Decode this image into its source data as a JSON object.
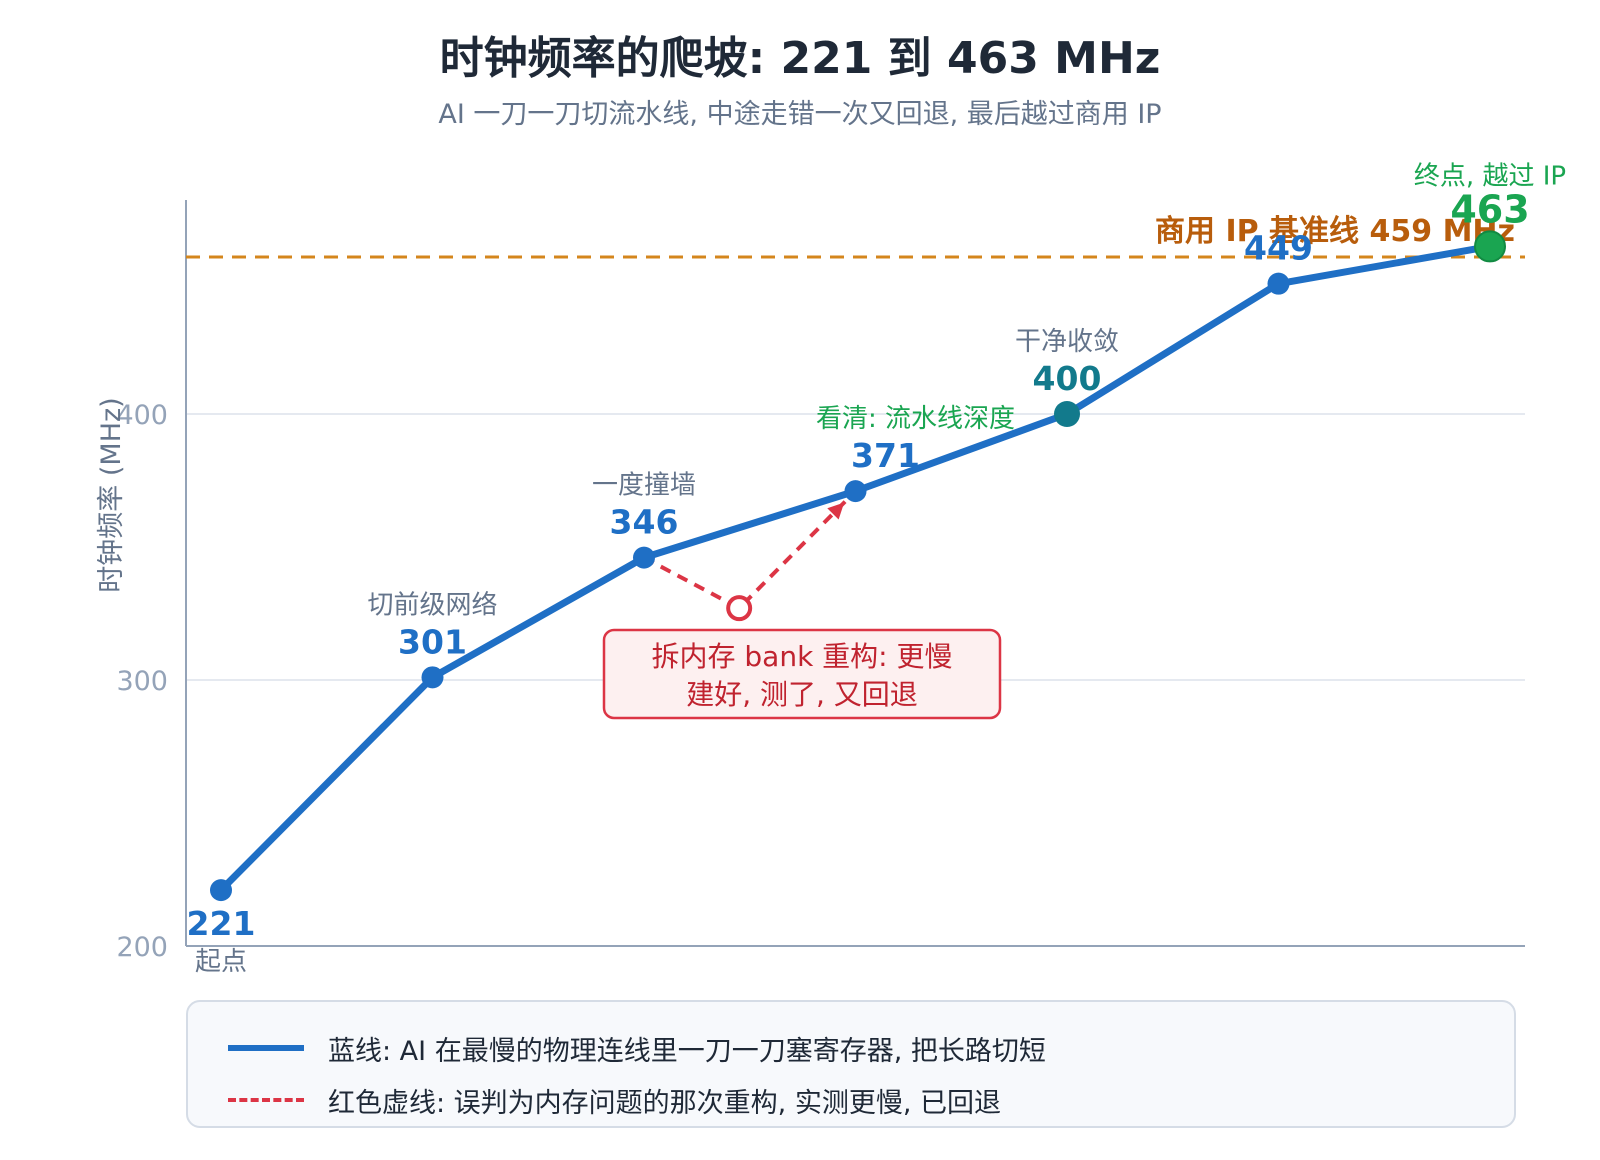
{
  "title": "时钟频率的爬坡: 221 到 463 MHz",
  "subtitle": "AI 一刀一刀切流水线, 中途走错一次又回退, 最后越过商用 IP",
  "chart_data": {
    "type": "line",
    "ylabel": "时钟频率 (MHz)",
    "ylim": [
      200,
      470
    ],
    "yticks": [
      200,
      300,
      400
    ],
    "grid": true,
    "series": [
      {
        "name": "蓝线: AI 在最慢的物理连线里一刀一刀塞寄存器, 把长路切短",
        "color": "#1f6fc5",
        "points": [
          {
            "step": 1,
            "value": 221,
            "label": "221",
            "note": "起点"
          },
          {
            "step": 2,
            "value": 301,
            "label": "301",
            "note": "切前级网络"
          },
          {
            "step": 3,
            "value": 346,
            "label": "346",
            "note": "一度撞墙"
          },
          {
            "step": 4,
            "value": 371,
            "label": "371",
            "note": "看清: 流水线深度"
          },
          {
            "step": 5,
            "value": 400,
            "label": "400",
            "note": "干净收敛"
          },
          {
            "step": 6,
            "value": 449,
            "label": "449",
            "note": ""
          },
          {
            "step": 7,
            "value": 463,
            "label": "463",
            "note": "终点, 越过 IP"
          }
        ]
      },
      {
        "name": "红色虚线: 误判为内存问题的那次重构, 实测更慢, 已回退",
        "color": "#dc3545",
        "style": "dashed",
        "points": [
          {
            "step": 3,
            "value": 346
          },
          {
            "step": 3.45,
            "value": 327
          },
          {
            "step": 4,
            "value": 371
          }
        ]
      }
    ],
    "reference_line": {
      "value": 459,
      "label": "商用 IP 基准线 459 MHz",
      "color": "#d4861c"
    },
    "callout": {
      "lines": [
        "拆内存 bank 重构: 更慢",
        "建好, 测了, 又回退"
      ]
    },
    "colors": {
      "axis": "#94a3b8",
      "grid": "#e5e9f0",
      "muted": "#64748b",
      "green": "#1aa551",
      "teal": "#127a8c",
      "orange_text": "#b85d0c"
    }
  },
  "legend": {
    "items": [
      {
        "style": "solid",
        "text": "蓝线: AI 在最慢的物理连线里一刀一刀塞寄存器, 把长路切短"
      },
      {
        "style": "dashed",
        "text": "红色虚线: 误判为内存问题的那次重构, 实测更慢, 已回退"
      }
    ]
  }
}
